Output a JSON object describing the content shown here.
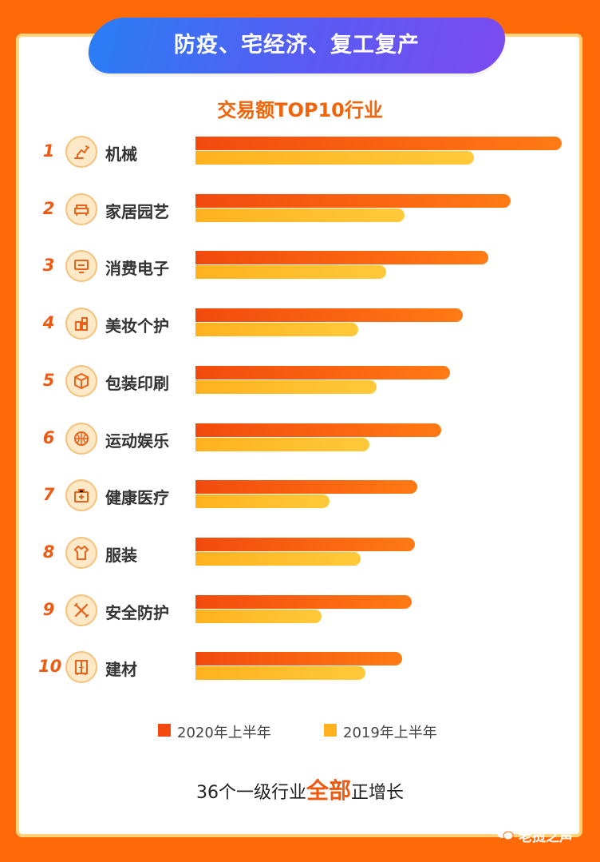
{
  "header": {
    "banner_title": "防疫、宅经济、复工复产"
  },
  "chart_data": {
    "type": "bar",
    "title": "交易额TOP10行业",
    "ranks": [
      "1",
      "2",
      "3",
      "4",
      "5",
      "6",
      "7",
      "8",
      "9",
      "10"
    ],
    "categories": [
      "机械",
      "家居园艺",
      "消费电子",
      "美妆个护",
      "包装印刷",
      "运动娱乐",
      "健康医疗",
      "服装",
      "安全防护",
      "建材"
    ],
    "category_icons": [
      "robot-arm-icon",
      "sofa-icon",
      "monitor-icon",
      "cosmetics-icon",
      "package-box-icon",
      "basketball-icon",
      "medical-kit-icon",
      "clothing-icon",
      "tools-icon",
      "cabinet-icon"
    ],
    "series": [
      {
        "name": "2020年上半年",
        "color": "#f24a0e",
        "values": [
          100,
          86,
          80,
          73,
          69.5,
          67,
          60.5,
          60,
          59,
          56.5
        ]
      },
      {
        "name": "2019年上半年",
        "color": "#ffb21e",
        "values": [
          76,
          57,
          52,
          44.5,
          49.5,
          47.5,
          36.5,
          45,
          34.5,
          46.5
        ]
      }
    ],
    "xlim": [
      0,
      100
    ],
    "grid": false,
    "legend_position": "bottom"
  },
  "footer": {
    "prefix": "36个一级行业",
    "highlight": "全部",
    "suffix": "正增长"
  },
  "watermark": {
    "text": "老挝之声"
  }
}
